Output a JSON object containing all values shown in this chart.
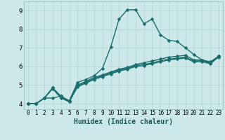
{
  "title": "",
  "xlabel": "Humidex (Indice chaleur)",
  "bg_color": "#cce8e8",
  "grid_color": "#b8d8d8",
  "line_color": "#1a6e6e",
  "marker": "D",
  "markersize": 2.5,
  "linewidth": 1.0,
  "xlim": [
    -0.5,
    23.5
  ],
  "ylim": [
    3.7,
    9.5
  ],
  "xticks": [
    0,
    1,
    2,
    3,
    4,
    5,
    6,
    7,
    8,
    9,
    10,
    11,
    12,
    13,
    14,
    15,
    16,
    17,
    18,
    19,
    20,
    21,
    22,
    23
  ],
  "yticks": [
    4,
    5,
    6,
    7,
    8,
    9
  ],
  "series": [
    [
      [
        0,
        4.0
      ],
      [
        1,
        4.0
      ],
      [
        2,
        4.3
      ],
      [
        3,
        4.3
      ],
      [
        4,
        4.4
      ],
      [
        5,
        4.15
      ],
      [
        6,
        5.15
      ],
      [
        7,
        5.3
      ],
      [
        8,
        5.5
      ],
      [
        9,
        5.9
      ],
      [
        10,
        7.05
      ],
      [
        11,
        8.55
      ],
      [
        12,
        9.05
      ],
      [
        13,
        9.05
      ],
      [
        14,
        8.3
      ],
      [
        15,
        8.55
      ],
      [
        16,
        7.7
      ],
      [
        17,
        7.4
      ],
      [
        18,
        7.35
      ],
      [
        19,
        7.0
      ],
      [
        20,
        6.65
      ],
      [
        21,
        6.35
      ],
      [
        22,
        6.2
      ],
      [
        23,
        6.55
      ]
    ],
    [
      [
        0,
        4.0
      ],
      [
        1,
        4.0
      ],
      [
        2,
        4.3
      ],
      [
        3,
        4.85
      ],
      [
        4,
        4.4
      ],
      [
        5,
        4.15
      ],
      [
        6,
        5.0
      ],
      [
        7,
        5.2
      ],
      [
        8,
        5.4
      ],
      [
        9,
        5.55
      ],
      [
        10,
        5.7
      ],
      [
        11,
        5.85
      ],
      [
        12,
        5.95
      ],
      [
        13,
        6.1
      ],
      [
        14,
        6.2
      ],
      [
        15,
        6.3
      ],
      [
        16,
        6.4
      ],
      [
        17,
        6.5
      ],
      [
        18,
        6.55
      ],
      [
        19,
        6.6
      ],
      [
        20,
        6.35
      ],
      [
        21,
        6.35
      ],
      [
        22,
        6.25
      ],
      [
        23,
        6.55
      ]
    ],
    [
      [
        0,
        4.0
      ],
      [
        1,
        4.0
      ],
      [
        2,
        4.3
      ],
      [
        3,
        4.85
      ],
      [
        4,
        4.35
      ],
      [
        5,
        4.1
      ],
      [
        6,
        4.95
      ],
      [
        7,
        5.15
      ],
      [
        8,
        5.35
      ],
      [
        9,
        5.5
      ],
      [
        10,
        5.65
      ],
      [
        11,
        5.8
      ],
      [
        12,
        5.9
      ],
      [
        13,
        6.05
      ],
      [
        14,
        6.1
      ],
      [
        15,
        6.2
      ],
      [
        16,
        6.3
      ],
      [
        17,
        6.4
      ],
      [
        18,
        6.45
      ],
      [
        19,
        6.5
      ],
      [
        20,
        6.3
      ],
      [
        21,
        6.3
      ],
      [
        22,
        6.2
      ],
      [
        23,
        6.55
      ]
    ],
    [
      [
        0,
        4.0
      ],
      [
        1,
        4.0
      ],
      [
        2,
        4.3
      ],
      [
        3,
        4.8
      ],
      [
        4,
        4.3
      ],
      [
        5,
        4.1
      ],
      [
        6,
        4.9
      ],
      [
        7,
        5.1
      ],
      [
        8,
        5.3
      ],
      [
        9,
        5.45
      ],
      [
        10,
        5.6
      ],
      [
        11,
        5.75
      ],
      [
        12,
        5.85
      ],
      [
        13,
        6.0
      ],
      [
        14,
        6.05
      ],
      [
        15,
        6.15
      ],
      [
        16,
        6.25
      ],
      [
        17,
        6.35
      ],
      [
        18,
        6.4
      ],
      [
        19,
        6.45
      ],
      [
        20,
        6.25
      ],
      [
        21,
        6.25
      ],
      [
        22,
        6.15
      ],
      [
        23,
        6.5
      ]
    ]
  ]
}
